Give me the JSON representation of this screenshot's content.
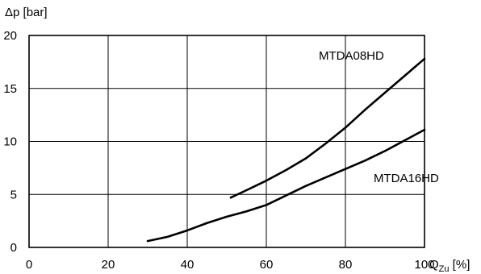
{
  "chart_data": {
    "type": "line",
    "title": "",
    "ylabel": "Δp [bar]",
    "xlabel": {
      "main": "Q",
      "sub": "Zu",
      "unit": " [%]"
    },
    "xlim": [
      0,
      100
    ],
    "ylim": [
      0,
      20
    ],
    "x_ticks": [
      0,
      20,
      40,
      60,
      80,
      100
    ],
    "y_ticks": [
      0,
      5,
      10,
      15,
      20
    ],
    "grid": true,
    "line_color": "#000000",
    "series": [
      {
        "name": "MTDA08HD",
        "points": [
          [
            51,
            4.7
          ],
          [
            55,
            5.4
          ],
          [
            60,
            6.3
          ],
          [
            65,
            7.3
          ],
          [
            70,
            8.4
          ],
          [
            75,
            9.8
          ],
          [
            80,
            11.3
          ],
          [
            85,
            13.0
          ],
          [
            90,
            14.6
          ],
          [
            95,
            16.2
          ],
          [
            100,
            17.8
          ]
        ]
      },
      {
        "name": "MTDA16HD",
        "points": [
          [
            30,
            0.6
          ],
          [
            35,
            1.0
          ],
          [
            40,
            1.6
          ],
          [
            45,
            2.3
          ],
          [
            50,
            2.9
          ],
          [
            55,
            3.4
          ],
          [
            60,
            4.0
          ],
          [
            65,
            4.9
          ],
          [
            70,
            5.8
          ],
          [
            75,
            6.6
          ],
          [
            80,
            7.4
          ],
          [
            85,
            8.2
          ],
          [
            90,
            9.1
          ],
          [
            95,
            10.1
          ],
          [
            100,
            11.1
          ]
        ]
      }
    ]
  }
}
